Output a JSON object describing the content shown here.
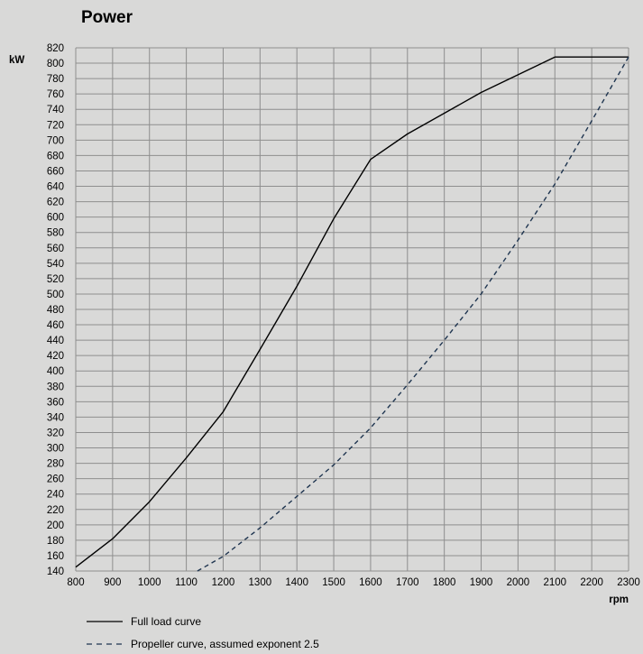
{
  "chart_data": {
    "type": "line",
    "title": "Power",
    "ylabel": "kW",
    "xlabel": "rpm",
    "xlim": [
      800,
      2300
    ],
    "ylim": [
      140,
      820
    ],
    "xticks": [
      800,
      900,
      1000,
      1100,
      1200,
      1300,
      1400,
      1500,
      1600,
      1700,
      1800,
      1900,
      2000,
      2100,
      2200,
      2300
    ],
    "yticks": [
      140,
      160,
      180,
      200,
      220,
      240,
      260,
      280,
      300,
      320,
      340,
      360,
      380,
      400,
      420,
      440,
      460,
      480,
      500,
      520,
      540,
      560,
      580,
      600,
      620,
      640,
      660,
      680,
      700,
      720,
      740,
      760,
      780,
      800,
      820
    ],
    "grid": true,
    "legend_position": "bottom-left",
    "series": [
      {
        "name": "Full load curve",
        "style": "solid",
        "color": "#000000",
        "x": [
          800,
          900,
          1000,
          1100,
          1200,
          1300,
          1400,
          1500,
          1600,
          1700,
          1800,
          1900,
          2000,
          2100,
          2200,
          2300
        ],
        "y": [
          145,
          182,
          230,
          287,
          347,
          428,
          510,
          598,
          675,
          708,
          735,
          762,
          785,
          808,
          808,
          808
        ]
      },
      {
        "name": "Propeller curve, assumed exponent 2.5",
        "style": "dashed",
        "color": "#1f3550",
        "x": [
          1130,
          1200,
          1300,
          1400,
          1500,
          1600,
          1700,
          1800,
          1900,
          2000,
          2100,
          2200,
          2300
        ],
        "y": [
          140,
          159,
          196,
          237,
          278,
          326,
          382,
          440,
          500,
          570,
          643,
          725,
          808
        ]
      }
    ]
  },
  "colors": {
    "background": "#d9d9d8",
    "grid": "#8e8e8e",
    "full_load": "#000000",
    "propeller": "#1f3550"
  }
}
